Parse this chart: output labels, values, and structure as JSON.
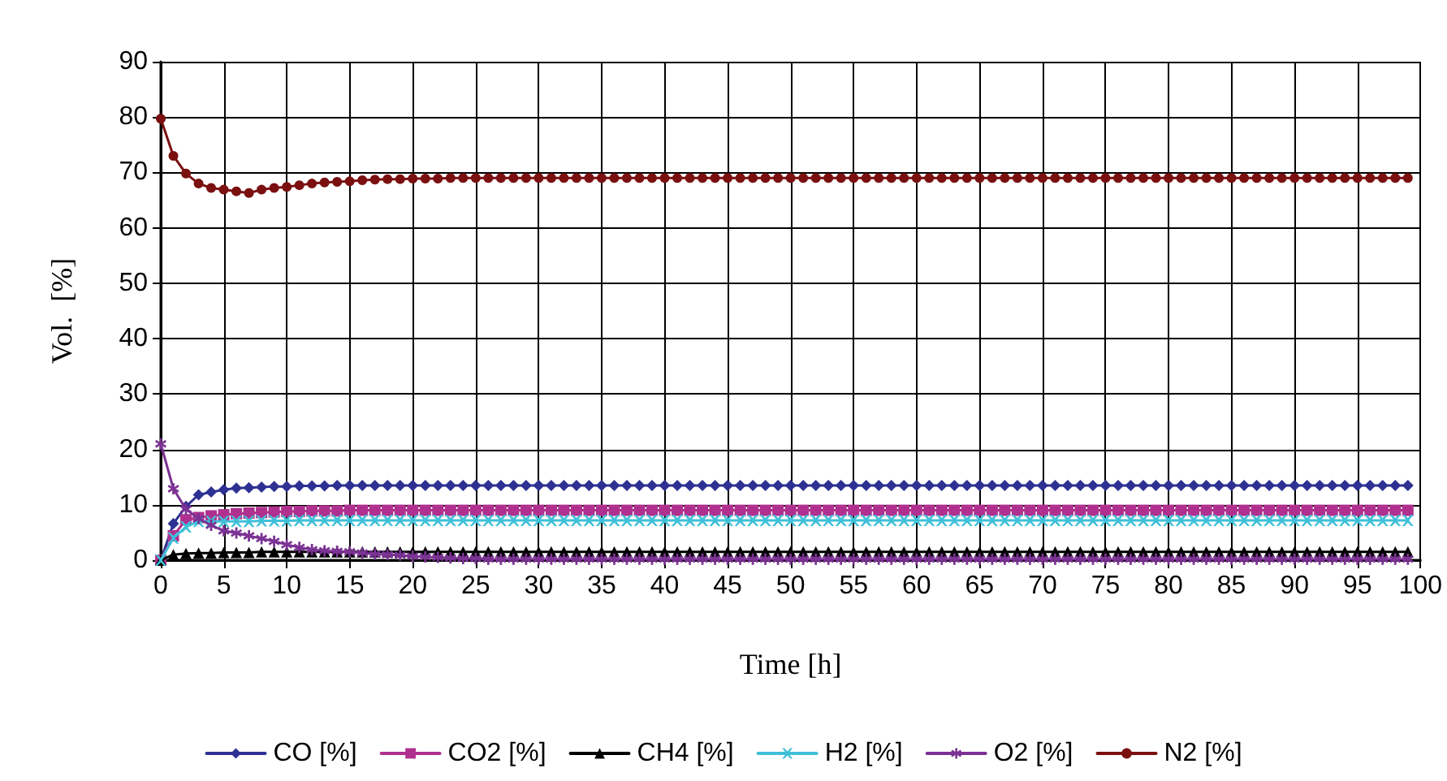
{
  "chart_data": {
    "type": "line",
    "xlabel": "Time [h]",
    "ylabel": "Vol.  [%]",
    "xlim": [
      0,
      100
    ],
    "xticks": [
      0,
      5,
      10,
      15,
      20,
      25,
      30,
      35,
      40,
      45,
      50,
      55,
      60,
      65,
      70,
      75,
      80,
      85,
      90,
      95,
      100
    ],
    "ylim": [
      0,
      90
    ],
    "yticks": [
      0,
      10,
      20,
      30,
      40,
      50,
      60,
      70,
      80,
      90
    ],
    "grid": true,
    "legend": "bottom",
    "x": [
      0,
      1,
      2,
      3,
      4,
      5,
      6,
      7,
      8,
      9,
      10,
      11,
      12,
      13,
      14,
      15,
      16,
      17,
      18,
      19,
      20,
      21,
      22,
      23,
      24,
      25,
      26,
      27,
      28,
      29,
      30,
      31,
      32,
      33,
      34,
      35,
      36,
      37,
      38,
      39,
      40,
      41,
      42,
      43,
      44,
      45,
      46,
      47,
      48,
      49,
      50,
      51,
      52,
      53,
      54,
      55,
      56,
      57,
      58,
      59,
      60,
      61,
      62,
      63,
      64,
      65,
      66,
      67,
      68,
      69,
      70,
      71,
      72,
      73,
      74,
      75,
      76,
      77,
      78,
      79,
      80,
      81,
      82,
      83,
      84,
      85,
      86,
      87,
      88,
      89,
      90,
      91,
      92,
      93,
      94,
      95,
      96,
      97,
      98,
      99
    ],
    "series": [
      {
        "name": "CO [%]",
        "color": "#2e3192",
        "marker": "diamond",
        "values": [
          0,
          6.6,
          9.7,
          11.8,
          12.3,
          12.7,
          13,
          13.1,
          13.2,
          13.3,
          13.3,
          13.4,
          13.4,
          13.4,
          13.5,
          13.5,
          13.5,
          13.5,
          13.5,
          13.5,
          13.5,
          13.5,
          13.5,
          13.5,
          13.5,
          13.5,
          13.5,
          13.5,
          13.5,
          13.5,
          13.5,
          13.5,
          13.5,
          13.5,
          13.5,
          13.5,
          13.5,
          13.5,
          13.5,
          13.5,
          13.5,
          13.5,
          13.5,
          13.5,
          13.5,
          13.5,
          13.5,
          13.5,
          13.5,
          13.5,
          13.5,
          13.5,
          13.5,
          13.5,
          13.5,
          13.5,
          13.5,
          13.5,
          13.5,
          13.5,
          13.5,
          13.5,
          13.5,
          13.5,
          13.5,
          13.5,
          13.5,
          13.5,
          13.5,
          13.5,
          13.5,
          13.5,
          13.5,
          13.5,
          13.5,
          13.5,
          13.5,
          13.5,
          13.5,
          13.5,
          13.5,
          13.5,
          13.5,
          13.5,
          13.5,
          13.5,
          13.5,
          13.5,
          13.5,
          13.5,
          13.5,
          13.5,
          13.5,
          13.5,
          13.5,
          13.5,
          13.5,
          13.5,
          13.5,
          13.5
        ]
      },
      {
        "name": "CO2 [%]",
        "color": "#b0308f",
        "marker": "square",
        "values": [
          0,
          4.4,
          7.3,
          7.7,
          8,
          8.2,
          8.4,
          8.5,
          8.6,
          8.7,
          8.8,
          8.8,
          8.9,
          8.9,
          8.9,
          9,
          9,
          9,
          9,
          9,
          9,
          9,
          9,
          9,
          9,
          9,
          9,
          9,
          9,
          9,
          9,
          9,
          9,
          9,
          9,
          9,
          9,
          9,
          9,
          9,
          9,
          9,
          9,
          9,
          9,
          9,
          9,
          9,
          9,
          9,
          9,
          9,
          9,
          9,
          9,
          9,
          9,
          9,
          9,
          9,
          9,
          9,
          9,
          9,
          9,
          9,
          9,
          9,
          9,
          9,
          9,
          9,
          9,
          9,
          9,
          9,
          9,
          9,
          9,
          9,
          9,
          9,
          9,
          9,
          9,
          9,
          9,
          9,
          9,
          9,
          9,
          9,
          9,
          9,
          9,
          9,
          9,
          9,
          9,
          9
        ]
      },
      {
        "name": "CH4 [%]",
        "color": "#000000",
        "marker": "triangle",
        "values": [
          0,
          1,
          1.2,
          1.3,
          1.3,
          1.4,
          1.4,
          1.4,
          1.5,
          1.5,
          1.5,
          1.5,
          1.5,
          1.5,
          1.5,
          1.5,
          1.5,
          1.5,
          1.5,
          1.5,
          1.5,
          1.5,
          1.5,
          1.5,
          1.5,
          1.5,
          1.5,
          1.5,
          1.5,
          1.5,
          1.5,
          1.5,
          1.5,
          1.5,
          1.5,
          1.5,
          1.5,
          1.5,
          1.5,
          1.5,
          1.5,
          1.5,
          1.5,
          1.5,
          1.5,
          1.5,
          1.5,
          1.5,
          1.5,
          1.5,
          1.5,
          1.5,
          1.5,
          1.5,
          1.5,
          1.5,
          1.5,
          1.5,
          1.5,
          1.5,
          1.5,
          1.5,
          1.5,
          1.5,
          1.5,
          1.5,
          1.5,
          1.5,
          1.5,
          1.5,
          1.5,
          1.5,
          1.5,
          1.5,
          1.5,
          1.5,
          1.5,
          1.5,
          1.5,
          1.5,
          1.5,
          1.5,
          1.5,
          1.5,
          1.5,
          1.5,
          1.5,
          1.5,
          1.5,
          1.5,
          1.5,
          1.5,
          1.5,
          1.5,
          1.5,
          1.5,
          1.5,
          1.5,
          1.5,
          1.5
        ]
      },
      {
        "name": "H2 [%]",
        "color": "#3fc0d8",
        "marker": "cross",
        "values": [
          0,
          4,
          6,
          7,
          7,
          7,
          7,
          7,
          7.1,
          7.1,
          7.1,
          7.2,
          7.2,
          7.2,
          7.2,
          7.2,
          7.2,
          7.2,
          7.2,
          7.2,
          7.2,
          7.2,
          7.2,
          7.2,
          7.2,
          7.2,
          7.2,
          7.2,
          7.2,
          7.2,
          7.2,
          7.2,
          7.2,
          7.2,
          7.2,
          7.2,
          7.2,
          7.2,
          7.2,
          7.2,
          7.2,
          7.2,
          7.2,
          7.2,
          7.2,
          7.2,
          7.2,
          7.2,
          7.2,
          7.2,
          7.2,
          7.2,
          7.2,
          7.2,
          7.2,
          7.2,
          7.2,
          7.2,
          7.2,
          7.2,
          7.2,
          7.2,
          7.2,
          7.2,
          7.2,
          7.2,
          7.2,
          7.2,
          7.2,
          7.2,
          7.2,
          7.2,
          7.2,
          7.2,
          7.2,
          7.2,
          7.2,
          7.2,
          7.2,
          7.2,
          7.2,
          7.2,
          7.2,
          7.2,
          7.2,
          7.2,
          7.2,
          7.2,
          7.2,
          7.2,
          7.2,
          7.2,
          7.2,
          7.2,
          7.2,
          7.2,
          7.2,
          7.2,
          7.2,
          7.2
        ]
      },
      {
        "name": "O2 [%]",
        "color": "#7b3294",
        "marker": "star",
        "values": [
          21,
          12.9,
          9.2,
          7.5,
          6.3,
          5.3,
          4.9,
          4.4,
          3.9,
          3.4,
          2.8,
          2.3,
          1.9,
          1.7,
          1.6,
          1.5,
          1.3,
          1.1,
          1,
          0.9,
          0.7,
          0.6,
          0.5,
          0.4,
          0.3,
          0.3,
          0.2,
          0.2,
          0.2,
          0.2,
          0.2,
          0.2,
          0.2,
          0.2,
          0.2,
          0.2,
          0.2,
          0.2,
          0.2,
          0.2,
          0.2,
          0.2,
          0.2,
          0.2,
          0.2,
          0.2,
          0.2,
          0.2,
          0.2,
          0.2,
          0.2,
          0.2,
          0.2,
          0.2,
          0.2,
          0.2,
          0.2,
          0.2,
          0.2,
          0.2,
          0.2,
          0.2,
          0.2,
          0.2,
          0.2,
          0.2,
          0.2,
          0.2,
          0.2,
          0.2,
          0.2,
          0.2,
          0.2,
          0.2,
          0.2,
          0.2,
          0.2,
          0.2,
          0.2,
          0.2,
          0.2,
          0.2,
          0.2,
          0.2,
          0.2,
          0.2,
          0.2,
          0.2,
          0.2,
          0.2,
          0.2,
          0.2,
          0.2,
          0.2,
          0.2,
          0.2,
          0.2,
          0.2,
          0.2,
          0.2
        ]
      },
      {
        "name": "N2 [%]",
        "color": "#7b1010",
        "marker": "circle",
        "values": [
          79.7,
          73,
          69.8,
          68,
          67.2,
          66.9,
          66.6,
          66.3,
          66.9,
          67.2,
          67.4,
          67.7,
          68,
          68.2,
          68.3,
          68.4,
          68.6,
          68.7,
          68.8,
          68.8,
          68.9,
          68.9,
          68.9,
          69,
          69,
          69,
          69,
          69,
          69,
          69,
          69,
          69,
          69,
          69,
          69,
          69,
          69,
          69,
          69,
          69,
          69,
          69,
          69,
          69,
          69,
          69,
          69,
          69,
          69,
          69,
          69,
          69,
          69,
          69,
          69,
          69,
          69,
          69,
          69,
          69,
          69,
          69,
          69,
          69,
          69,
          69,
          69,
          69,
          69,
          69,
          69,
          69,
          69,
          69,
          69,
          69,
          69,
          69,
          69,
          69,
          69,
          69,
          69,
          69,
          69,
          69,
          69,
          69,
          69,
          69,
          69,
          69,
          69,
          69,
          69,
          69,
          69,
          69,
          69,
          69
        ]
      }
    ]
  }
}
